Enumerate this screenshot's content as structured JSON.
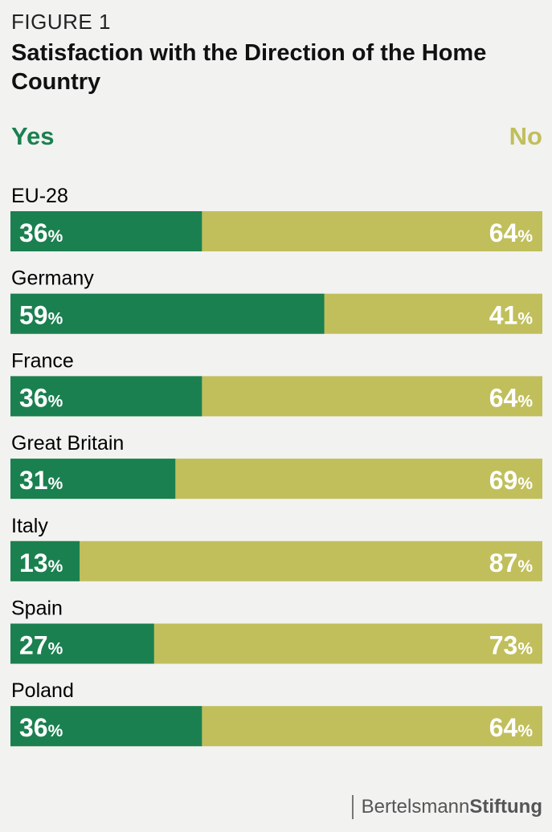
{
  "figure_label": "FIGURE 1",
  "title": "Satisfaction with the Direction of the Home Country",
  "colors": {
    "yes": "#1b8050",
    "no": "#c0bf5c"
  },
  "chart_data": {
    "type": "bar",
    "orientation": "horizontal-stacked-100",
    "categories": [
      "EU-28",
      "Germany",
      "France",
      "Great Britain",
      "Italy",
      "Spain",
      "Poland"
    ],
    "series": [
      {
        "name": "Yes",
        "values": [
          36,
          59,
          36,
          31,
          13,
          27,
          36
        ]
      },
      {
        "name": "No",
        "values": [
          64,
          41,
          64,
          69,
          87,
          73,
          64
        ]
      }
    ],
    "unit": "%",
    "xlim": [
      0,
      100
    ],
    "legend_position": "top"
  },
  "footer": {
    "brand_light": "Bertelsmann",
    "brand_bold": "Stiftung"
  }
}
